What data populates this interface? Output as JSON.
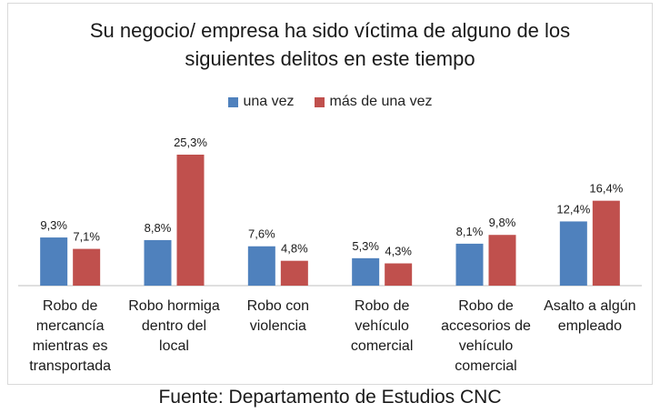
{
  "chart_data": {
    "type": "bar",
    "title": "Su negocio/ empresa ha sido víctima de alguno de los siguientes delitos en este tiempo",
    "title_lines": [
      "Su negocio/ empresa ha sido víctima de alguno de los",
      "siguientes delitos en este tiempo"
    ],
    "categories": [
      "Robo de mercancía mientras es transportada",
      "Robo hormiga dentro del local",
      "Robo con violencia",
      "Robo de vehículo comercial",
      "Robo de accesorios de vehículo comercial",
      "Asalto a algún empleado"
    ],
    "category_lines": [
      [
        "Robo de",
        "mercancía",
        "mientras es",
        "transportada"
      ],
      [
        "Robo hormiga",
        "dentro del",
        "local"
      ],
      [
        "Robo con",
        "violencia"
      ],
      [
        "Robo de",
        "vehículo",
        "comercial"
      ],
      [
        "Robo de",
        "accesorios de",
        "vehículo",
        "comercial"
      ],
      [
        "Asalto a algún",
        "empleado"
      ]
    ],
    "series": [
      {
        "name": "una vez",
        "color": "#4f81bd",
        "values": [
          9.3,
          8.8,
          7.6,
          5.3,
          8.1,
          12.4
        ],
        "labels": [
          "9,3%",
          "8,8%",
          "7,6%",
          "5,3%",
          "8,1%",
          "12,4%"
        ]
      },
      {
        "name": "más de una vez",
        "color": "#c0504d",
        "values": [
          7.1,
          25.3,
          4.8,
          4.3,
          9.8,
          16.4
        ],
        "labels": [
          "7,1%",
          "25,3%",
          "4,8%",
          "4,3%",
          "9,8%",
          "16,4%"
        ]
      }
    ],
    "ylim": [
      0,
      27
    ],
    "legend_position": "top",
    "grid": false
  },
  "source_text": "Fuente: Departamento de Estudios CNC"
}
